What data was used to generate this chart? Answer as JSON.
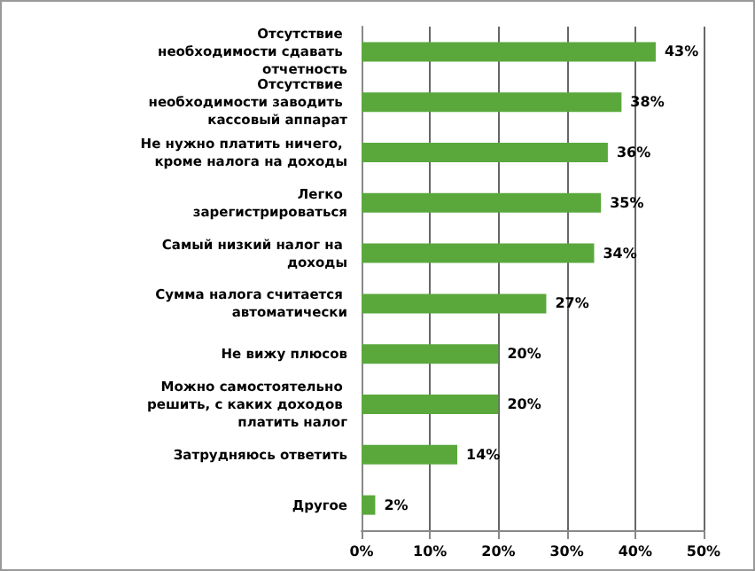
{
  "chart_data": {
    "type": "bar",
    "orientation": "horizontal",
    "categories": [
      "Отсутствие необходимости сдавать отчетность",
      "Отсутствие необходимости заводить кассовый аппарат",
      "Не нужно платить ничего, кроме налога на доходы",
      "Легко зарегистрироваться",
      "Самый низкий налог на доходы",
      "Сумма налога считается автоматически",
      "Не вижу плюсов",
      "Можно самостоятельно решить, с каких доходов платить налог",
      "Затрудняюсь ответить",
      "Другое"
    ],
    "values": [
      43,
      38,
      36,
      35,
      34,
      27,
      20,
      20,
      14,
      2
    ],
    "value_labels": [
      "43%",
      "38%",
      "36%",
      "35%",
      "34%",
      "27%",
      "20%",
      "20%",
      "14%",
      "2%"
    ],
    "color": "#5aa83c",
    "xlim": [
      0,
      50
    ],
    "xticks": [
      {
        "value": 0,
        "label": "0%"
      },
      {
        "value": 10,
        "label": "10%"
      },
      {
        "value": 20,
        "label": "20%"
      },
      {
        "value": 30,
        "label": "30%"
      },
      {
        "value": 40,
        "label": "40%"
      },
      {
        "value": 50,
        "label": "50%"
      }
    ],
    "grid": "x"
  }
}
